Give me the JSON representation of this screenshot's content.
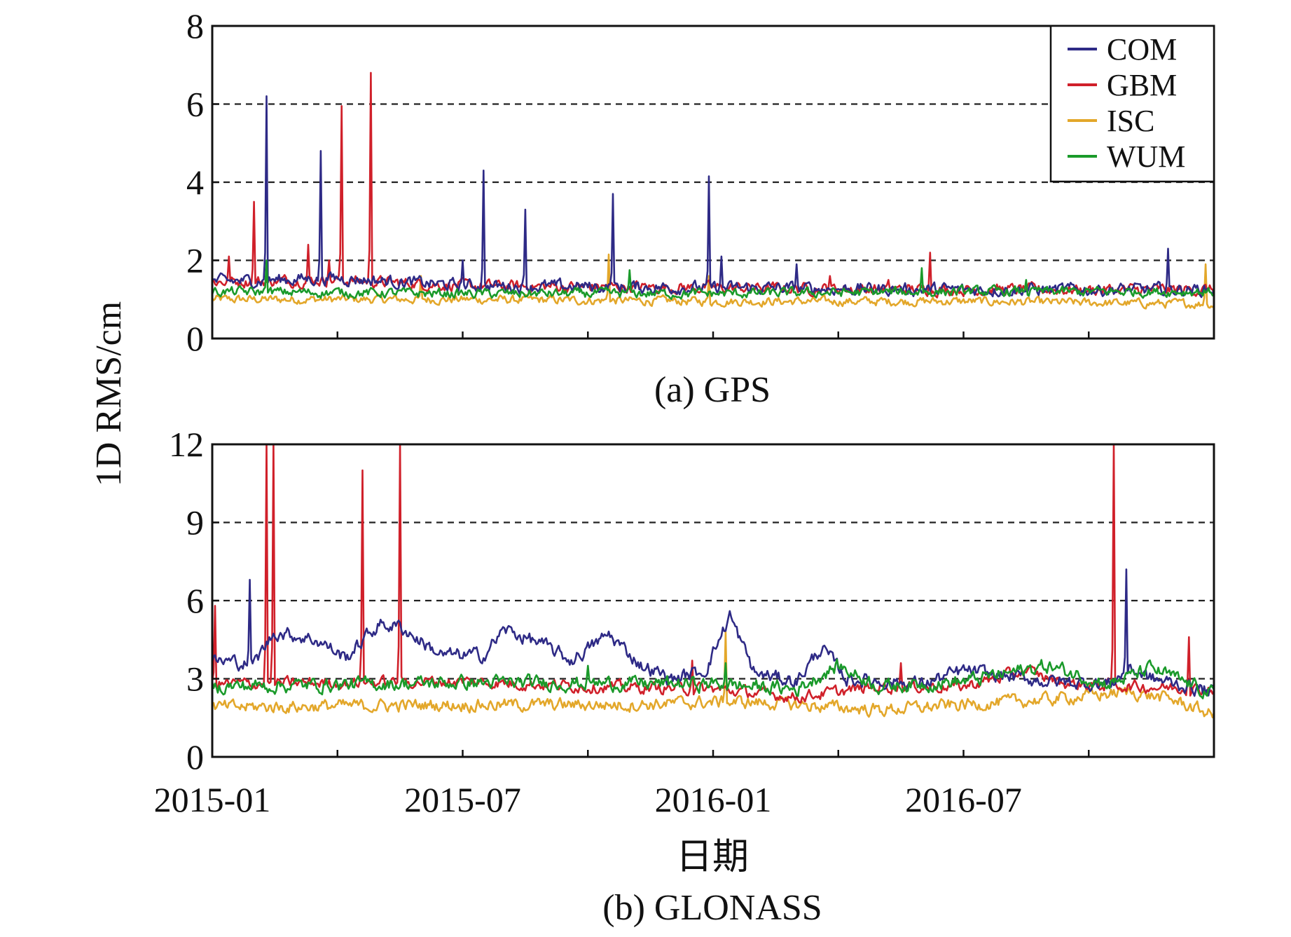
{
  "chart_data": {
    "type": "line",
    "ylabel": "1D RMS/cm",
    "xlabel": "日期",
    "x_tick_labels": [
      "2015-01",
      "2015-07",
      "2016-01",
      "2016-07"
    ],
    "legend": {
      "position": "top-right",
      "entries": [
        {
          "name": "COM",
          "color": "#2e2a86"
        },
        {
          "name": "GBM",
          "color": "#d0202a"
        },
        {
          "name": "ISC",
          "color": "#e3a72a"
        },
        {
          "name": "WUM",
          "color": "#1a9a2a"
        }
      ]
    },
    "x_range_months": [
      0,
      24
    ],
    "panels": [
      {
        "id": "gps",
        "caption": "(a) GPS",
        "ylim": [
          0,
          8
        ],
        "yticks": [
          0,
          2,
          4,
          6,
          8
        ],
        "grid_dashed_at": [
          2,
          4,
          6
        ],
        "series": [
          {
            "name": "COM",
            "baseline": [
              [
                0,
                1.45
              ],
              [
                3,
                1.55
              ],
              [
                6,
                1.35
              ],
              [
                12,
                1.3
              ],
              [
                18,
                1.25
              ],
              [
                24,
                1.25
              ]
            ],
            "noise": 0.13,
            "spikes": [
              [
                1.3,
                6.2
              ],
              [
                2.6,
                4.8
              ],
              [
                6.0,
                2.0
              ],
              [
                6.5,
                4.3
              ],
              [
                7.5,
                3.3
              ],
              [
                9.6,
                3.7
              ],
              [
                11.9,
                4.15
              ],
              [
                12.2,
                2.1
              ],
              [
                14.0,
                1.9
              ],
              [
                22.9,
                2.3
              ]
            ]
          },
          {
            "name": "GBM",
            "baseline": [
              [
                0,
                1.45
              ],
              [
                3,
                1.5
              ],
              [
                6,
                1.35
              ],
              [
                12,
                1.3
              ],
              [
                18,
                1.25
              ],
              [
                24,
                1.25
              ]
            ],
            "noise": 0.12,
            "spikes": [
              [
                0.4,
                2.1
              ],
              [
                1.0,
                3.5
              ],
              [
                2.3,
                2.4
              ],
              [
                2.8,
                2.0
              ],
              [
                3.1,
                5.95
              ],
              [
                3.8,
                6.8
              ],
              [
                14.8,
                1.6
              ],
              [
                16.2,
                1.5
              ],
              [
                17.2,
                2.2
              ]
            ]
          },
          {
            "name": "ISC",
            "baseline": [
              [
                0,
                1.0
              ],
              [
                6,
                1.0
              ],
              [
                12,
                0.95
              ],
              [
                18,
                0.95
              ],
              [
                24,
                0.88
              ]
            ],
            "noise": 0.09,
            "spikes": [
              [
                5.0,
                1.6
              ],
              [
                9.5,
                2.15
              ],
              [
                11.9,
                1.6
              ],
              [
                23.8,
                1.9
              ]
            ]
          },
          {
            "name": "WUM",
            "baseline": [
              [
                0,
                1.2
              ],
              [
                6,
                1.15
              ],
              [
                12,
                1.15
              ],
              [
                18,
                1.2
              ],
              [
                24,
                1.2
              ]
            ],
            "noise": 0.1,
            "spikes": [
              [
                1.3,
                2.0
              ],
              [
                10.0,
                1.75
              ],
              [
                17.0,
                1.8
              ],
              [
                19.5,
                1.5
              ]
            ]
          }
        ]
      },
      {
        "id": "glonass",
        "caption": "(b) GLONASS",
        "ylim": [
          0,
          12
        ],
        "yticks": [
          0,
          3,
          6,
          9,
          12
        ],
        "grid_dashed_at": [
          3,
          6,
          9
        ],
        "series": [
          {
            "name": "COM",
            "baseline": [
              [
                0,
                3.7
              ],
              [
                1,
                3.6
              ],
              [
                1.5,
                4.8
              ],
              [
                2.5,
                4.5
              ],
              [
                3.2,
                3.8
              ],
              [
                4.0,
                5.1
              ],
              [
                4.5,
                5.0
              ],
              [
                5.5,
                3.9
              ],
              [
                6.5,
                3.9
              ],
              [
                7.0,
                4.9
              ],
              [
                7.8,
                4.4
              ],
              [
                8.6,
                3.7
              ],
              [
                9.5,
                4.7
              ],
              [
                10.3,
                3.5
              ],
              [
                11.0,
                3.0
              ],
              [
                11.8,
                3.3
              ],
              [
                12.4,
                5.4
              ],
              [
                13.0,
                3.2
              ],
              [
                14.0,
                2.9
              ],
              [
                14.6,
                4.2
              ],
              [
                15.2,
                3.0
              ],
              [
                17.0,
                2.8
              ],
              [
                18.0,
                3.3
              ],
              [
                20.0,
                2.9
              ],
              [
                21.5,
                2.8
              ],
              [
                22.0,
                3.4
              ],
              [
                22.5,
                3.0
              ],
              [
                24,
                2.5
              ]
            ],
            "noise": 0.22,
            "spikes": [
              [
                0.9,
                6.8
              ],
              [
                12.4,
                5.6
              ],
              [
                21.9,
                7.2
              ]
            ]
          },
          {
            "name": "GBM",
            "baseline": [
              [
                0,
                2.8
              ],
              [
                6,
                2.9
              ],
              [
                9,
                2.7
              ],
              [
                12,
                2.6
              ],
              [
                14,
                2.3
              ],
              [
                16,
                2.7
              ],
              [
                18,
                2.7
              ],
              [
                19.5,
                3.3
              ],
              [
                20.5,
                2.8
              ],
              [
                24,
                2.6
              ]
            ],
            "noise": 0.18,
            "spikes": [
              [
                0.05,
                5.8
              ],
              [
                1.3,
                12
              ],
              [
                1.45,
                12
              ],
              [
                3.6,
                11.0
              ],
              [
                4.5,
                12
              ],
              [
                11.5,
                3.7
              ],
              [
                16.5,
                3.6
              ],
              [
                21.6,
                12
              ],
              [
                23.4,
                4.6
              ]
            ]
          },
          {
            "name": "ISC",
            "baseline": [
              [
                0,
                1.9
              ],
              [
                6,
                2.0
              ],
              [
                10,
                2.0
              ],
              [
                12,
                2.1
              ],
              [
                13,
                2.1
              ],
              [
                16,
                1.8
              ],
              [
                18,
                2.0
              ],
              [
                20,
                2.2
              ],
              [
                22,
                2.5
              ],
              [
                23,
                2.2
              ],
              [
                24,
                1.6
              ]
            ],
            "noise": 0.2,
            "spikes": [
              [
                12.3,
                4.8
              ]
            ]
          },
          {
            "name": "WUM",
            "baseline": [
              [
                0,
                2.7
              ],
              [
                6,
                2.85
              ],
              [
                12,
                2.8
              ],
              [
                14,
                2.6
              ],
              [
                15,
                3.5
              ],
              [
                16,
                2.7
              ],
              [
                18,
                2.9
              ],
              [
                20,
                3.5
              ],
              [
                21.5,
                2.8
              ],
              [
                22.5,
                3.4
              ],
              [
                24,
                2.4
              ]
            ],
            "noise": 0.22,
            "spikes": [
              [
                9.0,
                3.5
              ],
              [
                12.3,
                3.6
              ]
            ]
          }
        ]
      }
    ]
  }
}
